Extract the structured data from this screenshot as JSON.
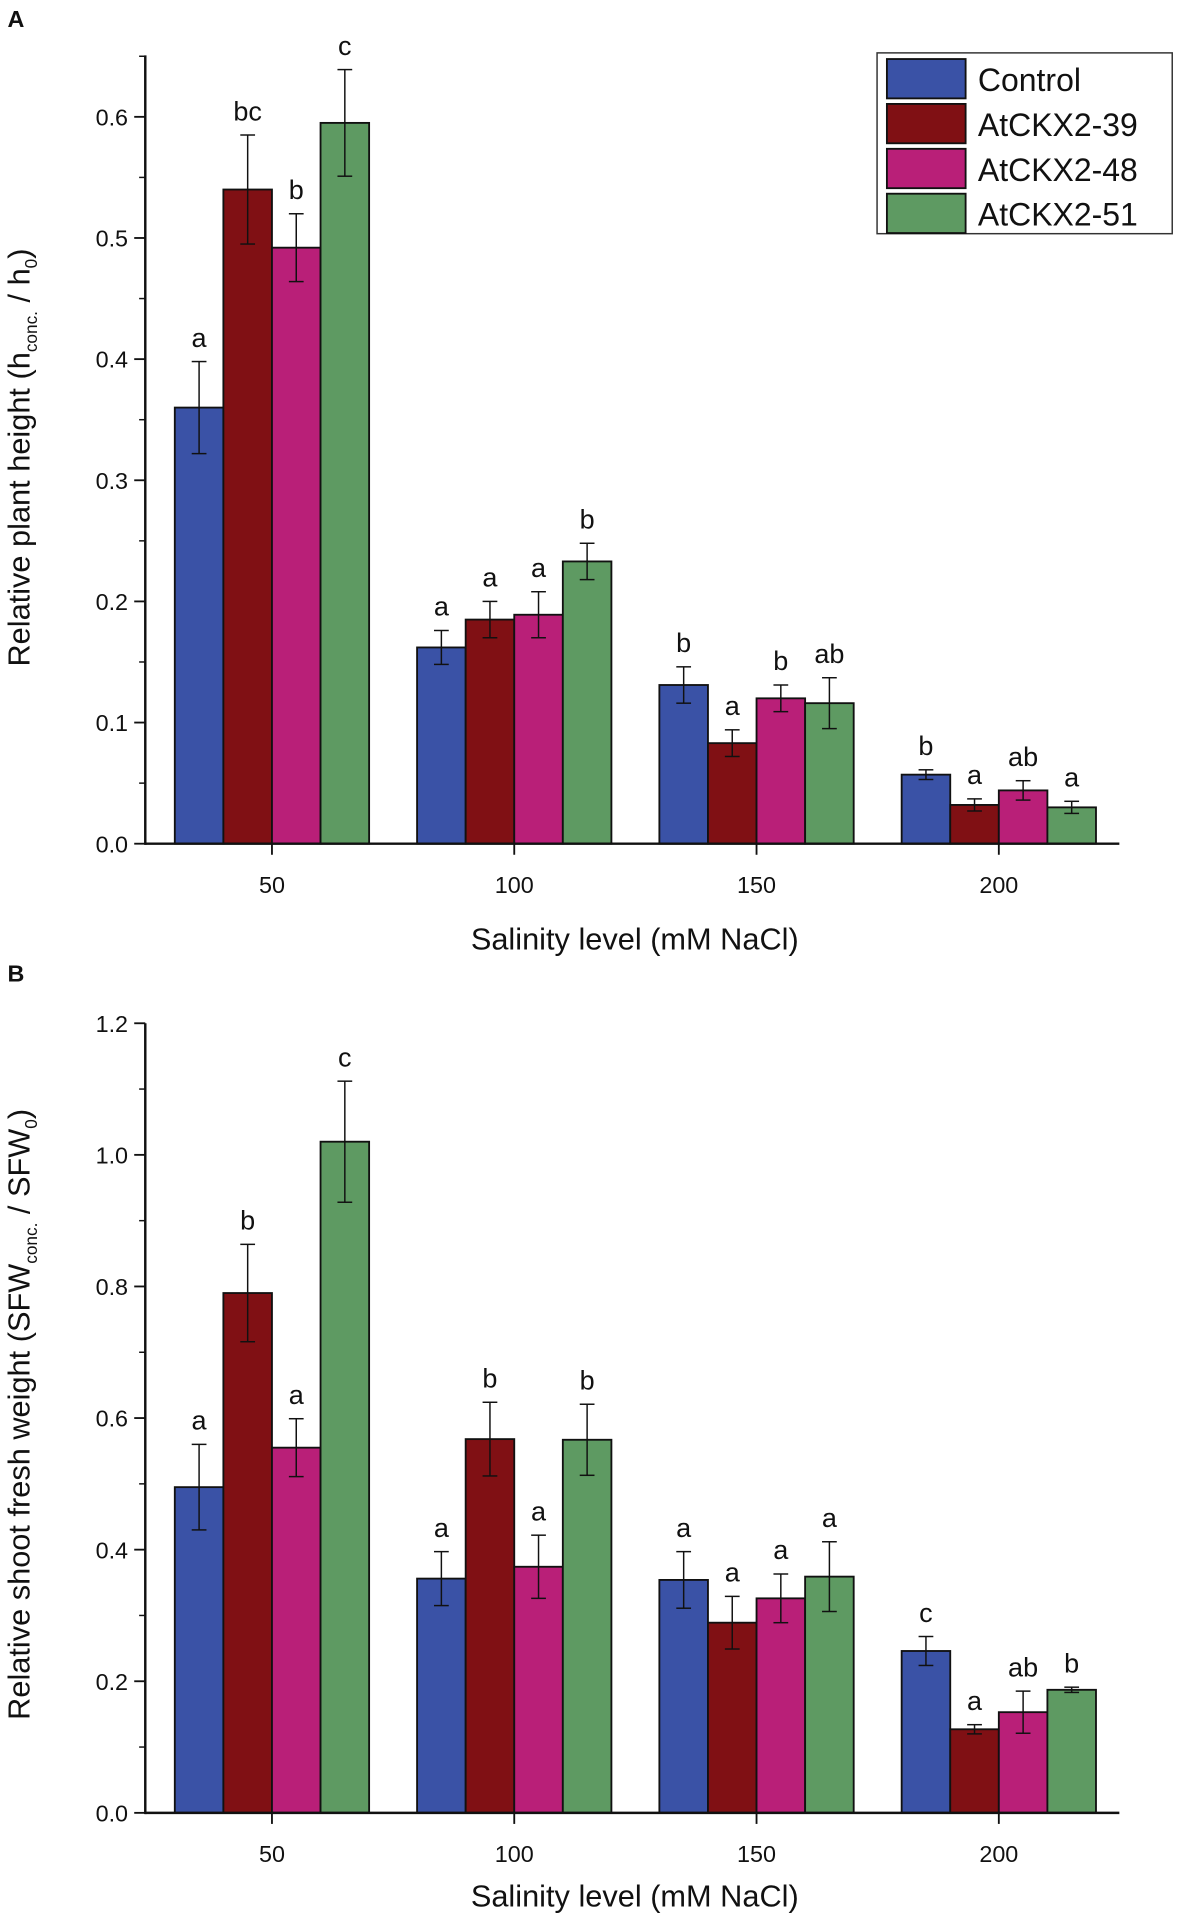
{
  "legend": [
    "Control",
    "AtCKX2-39",
    "AtCKX2-48",
    "AtCKX2-51"
  ],
  "colors": [
    "#3a52a6",
    "#801014",
    "#b91f78",
    "#5e9a62"
  ],
  "chart_data": [
    {
      "panel": "A",
      "type": "bar",
      "categories": [
        "50",
        "100",
        "150",
        "200"
      ],
      "xlabel": "Salinity level (mM NaCl)",
      "ylabel_parts": [
        "Relative plant height (h",
        "conc.",
        " / h",
        "0",
        ")"
      ],
      "ylim": [
        0,
        0.65
      ],
      "yticks": [
        "0.0",
        "0.1",
        "0.2",
        "0.3",
        "0.4",
        "0.5",
        "0.6"
      ],
      "legend_position": "top-right",
      "series": [
        {
          "name": "Control",
          "values": [
            0.36,
            0.162,
            0.131,
            0.057
          ],
          "errors": [
            0.038,
            0.014,
            0.015,
            0.004
          ],
          "letters": [
            "a",
            "a",
            "b",
            "b"
          ]
        },
        {
          "name": "AtCKX2-39",
          "values": [
            0.54,
            0.185,
            0.083,
            0.032
          ],
          "errors": [
            0.045,
            0.015,
            0.011,
            0.005
          ],
          "letters": [
            "bc",
            "a",
            "a",
            "a"
          ]
        },
        {
          "name": "AtCKX2-48",
          "values": [
            0.492,
            0.189,
            0.12,
            0.044
          ],
          "errors": [
            0.028,
            0.019,
            0.011,
            0.008
          ],
          "letters": [
            "b",
            "a",
            "b",
            "ab"
          ]
        },
        {
          "name": "AtCKX2-51",
          "values": [
            0.595,
            0.233,
            0.116,
            0.03
          ],
          "errors": [
            0.044,
            0.015,
            0.021,
            0.005
          ],
          "letters": [
            "c",
            "b",
            "ab",
            "a"
          ]
        }
      ]
    },
    {
      "panel": "B",
      "type": "bar",
      "categories": [
        "50",
        "100",
        "150",
        "200"
      ],
      "xlabel": "Salinity level (mM NaCl)",
      "ylabel_parts": [
        "Relative shoot fresh weight (SFW",
        "conc.",
        " / SFW",
        "0",
        ")"
      ],
      "ylim": [
        0,
        1.2
      ],
      "yticks": [
        "0.0",
        "0.2",
        "0.4",
        "0.6",
        "0.8",
        "1.0",
        "1.2"
      ],
      "series": [
        {
          "name": "Control",
          "values": [
            0.495,
            0.356,
            0.354,
            0.246
          ],
          "errors": [
            0.065,
            0.041,
            0.043,
            0.022
          ],
          "letters": [
            "a",
            "a",
            "a",
            "c"
          ]
        },
        {
          "name": "AtCKX2-39",
          "values": [
            0.79,
            0.568,
            0.289,
            0.127
          ],
          "errors": [
            0.074,
            0.056,
            0.04,
            0.007
          ],
          "letters": [
            "b",
            "b",
            "a",
            "a"
          ]
        },
        {
          "name": "AtCKX2-48",
          "values": [
            0.555,
            0.374,
            0.326,
            0.153
          ],
          "errors": [
            0.044,
            0.048,
            0.037,
            0.032
          ],
          "letters": [
            "a",
            "a",
            "a",
            "ab"
          ]
        },
        {
          "name": "AtCKX2-51",
          "values": [
            1.02,
            0.567,
            0.359,
            0.187
          ],
          "errors": [
            0.092,
            0.054,
            0.053,
            0.004
          ],
          "letters": [
            "c",
            "b",
            "a",
            "b"
          ]
        }
      ]
    }
  ]
}
